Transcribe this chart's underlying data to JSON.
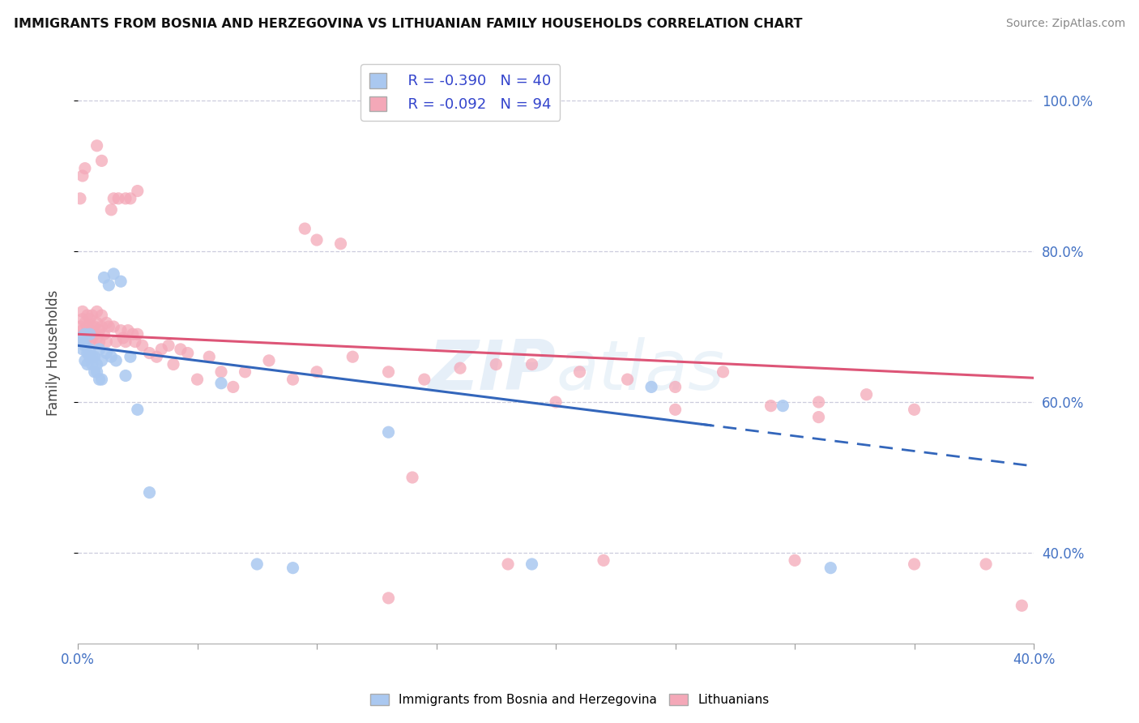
{
  "title": "IMMIGRANTS FROM BOSNIA AND HERZEGOVINA VS LITHUANIAN FAMILY HOUSEHOLDS CORRELATION CHART",
  "source": "Source: ZipAtlas.com",
  "ylabel": "Family Households",
  "xlim": [
    0.0,
    0.4
  ],
  "ylim": [
    0.28,
    1.05
  ],
  "yticks": [
    0.4,
    0.6,
    0.8,
    1.0
  ],
  "legend_r1": "R = -0.390",
  "legend_n1": "N = 40",
  "legend_r2": "R = -0.092",
  "legend_n2": "N = 94",
  "blue_color": "#aac8f0",
  "pink_color": "#f4a8b8",
  "trend_blue_color": "#3366bb",
  "trend_pink_color": "#dd5577",
  "watermark": "ZIPatlas",
  "blue_x": [
    0.001,
    0.002,
    0.002,
    0.003,
    0.003,
    0.003,
    0.004,
    0.004,
    0.005,
    0.005,
    0.005,
    0.006,
    0.006,
    0.007,
    0.007,
    0.008,
    0.008,
    0.009,
    0.009,
    0.01,
    0.01,
    0.011,
    0.012,
    0.013,
    0.014,
    0.015,
    0.016,
    0.018,
    0.02,
    0.022,
    0.025,
    0.03,
    0.06,
    0.075,
    0.09,
    0.13,
    0.19,
    0.24,
    0.295,
    0.315
  ],
  "blue_y": [
    0.685,
    0.67,
    0.68,
    0.655,
    0.675,
    0.69,
    0.65,
    0.665,
    0.66,
    0.67,
    0.69,
    0.66,
    0.65,
    0.66,
    0.64,
    0.65,
    0.64,
    0.63,
    0.67,
    0.655,
    0.63,
    0.765,
    0.665,
    0.755,
    0.66,
    0.77,
    0.655,
    0.76,
    0.635,
    0.66,
    0.59,
    0.48,
    0.625,
    0.385,
    0.38,
    0.56,
    0.385,
    0.62,
    0.595,
    0.38
  ],
  "pink_x": [
    0.001,
    0.001,
    0.002,
    0.002,
    0.002,
    0.003,
    0.003,
    0.003,
    0.004,
    0.004,
    0.004,
    0.005,
    0.005,
    0.005,
    0.006,
    0.006,
    0.006,
    0.007,
    0.007,
    0.008,
    0.008,
    0.008,
    0.009,
    0.009,
    0.01,
    0.01,
    0.011,
    0.012,
    0.012,
    0.013,
    0.014,
    0.015,
    0.016,
    0.017,
    0.018,
    0.019,
    0.02,
    0.021,
    0.022,
    0.023,
    0.024,
    0.025,
    0.027,
    0.03,
    0.033,
    0.035,
    0.038,
    0.04,
    0.043,
    0.046,
    0.05,
    0.055,
    0.06,
    0.065,
    0.07,
    0.08,
    0.09,
    0.1,
    0.115,
    0.13,
    0.145,
    0.16,
    0.175,
    0.19,
    0.21,
    0.23,
    0.25,
    0.27,
    0.29,
    0.31,
    0.33,
    0.35,
    0.001,
    0.002,
    0.003,
    0.008,
    0.01,
    0.015,
    0.02,
    0.025,
    0.1,
    0.14,
    0.18,
    0.22,
    0.3,
    0.35,
    0.13,
    0.2,
    0.25,
    0.31,
    0.095,
    0.11,
    0.38,
    0.395
  ],
  "pink_y": [
    0.7,
    0.685,
    0.71,
    0.695,
    0.72,
    0.69,
    0.705,
    0.68,
    0.7,
    0.685,
    0.715,
    0.695,
    0.71,
    0.68,
    0.7,
    0.715,
    0.685,
    0.7,
    0.69,
    0.705,
    0.685,
    0.72,
    0.695,
    0.68,
    0.7,
    0.715,
    0.69,
    0.705,
    0.68,
    0.7,
    0.855,
    0.7,
    0.68,
    0.87,
    0.695,
    0.685,
    0.68,
    0.695,
    0.87,
    0.69,
    0.68,
    0.69,
    0.675,
    0.665,
    0.66,
    0.67,
    0.675,
    0.65,
    0.67,
    0.665,
    0.63,
    0.66,
    0.64,
    0.62,
    0.64,
    0.655,
    0.63,
    0.64,
    0.66,
    0.64,
    0.63,
    0.645,
    0.65,
    0.65,
    0.64,
    0.63,
    0.62,
    0.64,
    0.595,
    0.6,
    0.61,
    0.59,
    0.87,
    0.9,
    0.91,
    0.94,
    0.92,
    0.87,
    0.87,
    0.88,
    0.815,
    0.5,
    0.385,
    0.39,
    0.39,
    0.385,
    0.34,
    0.6,
    0.59,
    0.58,
    0.83,
    0.81,
    0.385,
    0.33
  ]
}
